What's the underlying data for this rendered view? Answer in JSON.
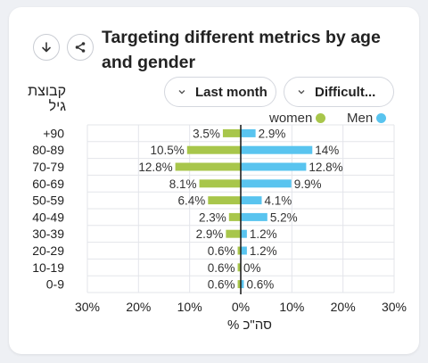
{
  "title": "Targeting different metrics by age and gender",
  "icons": {
    "download": "download-arrow-icon",
    "share": "share-icon",
    "dropdown": "chevron-down-icon"
  },
  "filters": {
    "period_label": "Last month",
    "metric_label": "Difficult..."
  },
  "age_header": "קבוצת גיל",
  "colors": {
    "women": "#a8c64b",
    "men": "#59c4ef",
    "grid": "#e3e5ea",
    "zero_line": "#222222"
  },
  "chart_data": {
    "type": "bar",
    "orientation": "horizontal-diverging",
    "ylabel": "קבוצת גיל",
    "xlabel": "% סה\"כ",
    "categories": [
      "+90",
      "80-89",
      "70-79",
      "60-69",
      "50-59",
      "40-49",
      "30-39",
      "20-29",
      "10-19",
      "0-9"
    ],
    "series": [
      {
        "name": "women",
        "values": [
          3.5,
          10.5,
          12.8,
          8.1,
          6.4,
          2.3,
          2.9,
          0.6,
          0.6,
          0.6
        ],
        "labels": [
          "3.5%",
          "10.5%",
          "12.8%",
          "8.1%",
          "6.4%",
          "2.3%",
          "2.9%",
          "0.6%",
          "0.6%",
          "0.6%"
        ]
      },
      {
        "name": "Men",
        "values": [
          2.9,
          14,
          12.8,
          9.9,
          4.1,
          5.2,
          1.2,
          1.2,
          0,
          0.6
        ],
        "labels": [
          "2.9%",
          "14%",
          "12.8%",
          "9.9%",
          "4.1%",
          "5.2%",
          "1.2%",
          "1.2%",
          "0%",
          "0.6%"
        ]
      }
    ],
    "xlim": [
      -30,
      30
    ],
    "ticks": [
      -30,
      -20,
      -10,
      0,
      10,
      20,
      30
    ],
    "tick_labels": [
      "30%",
      "20%",
      "10%",
      "0%",
      "10%",
      "20%",
      "30%"
    ],
    "grid": true,
    "legend": "top-right"
  }
}
